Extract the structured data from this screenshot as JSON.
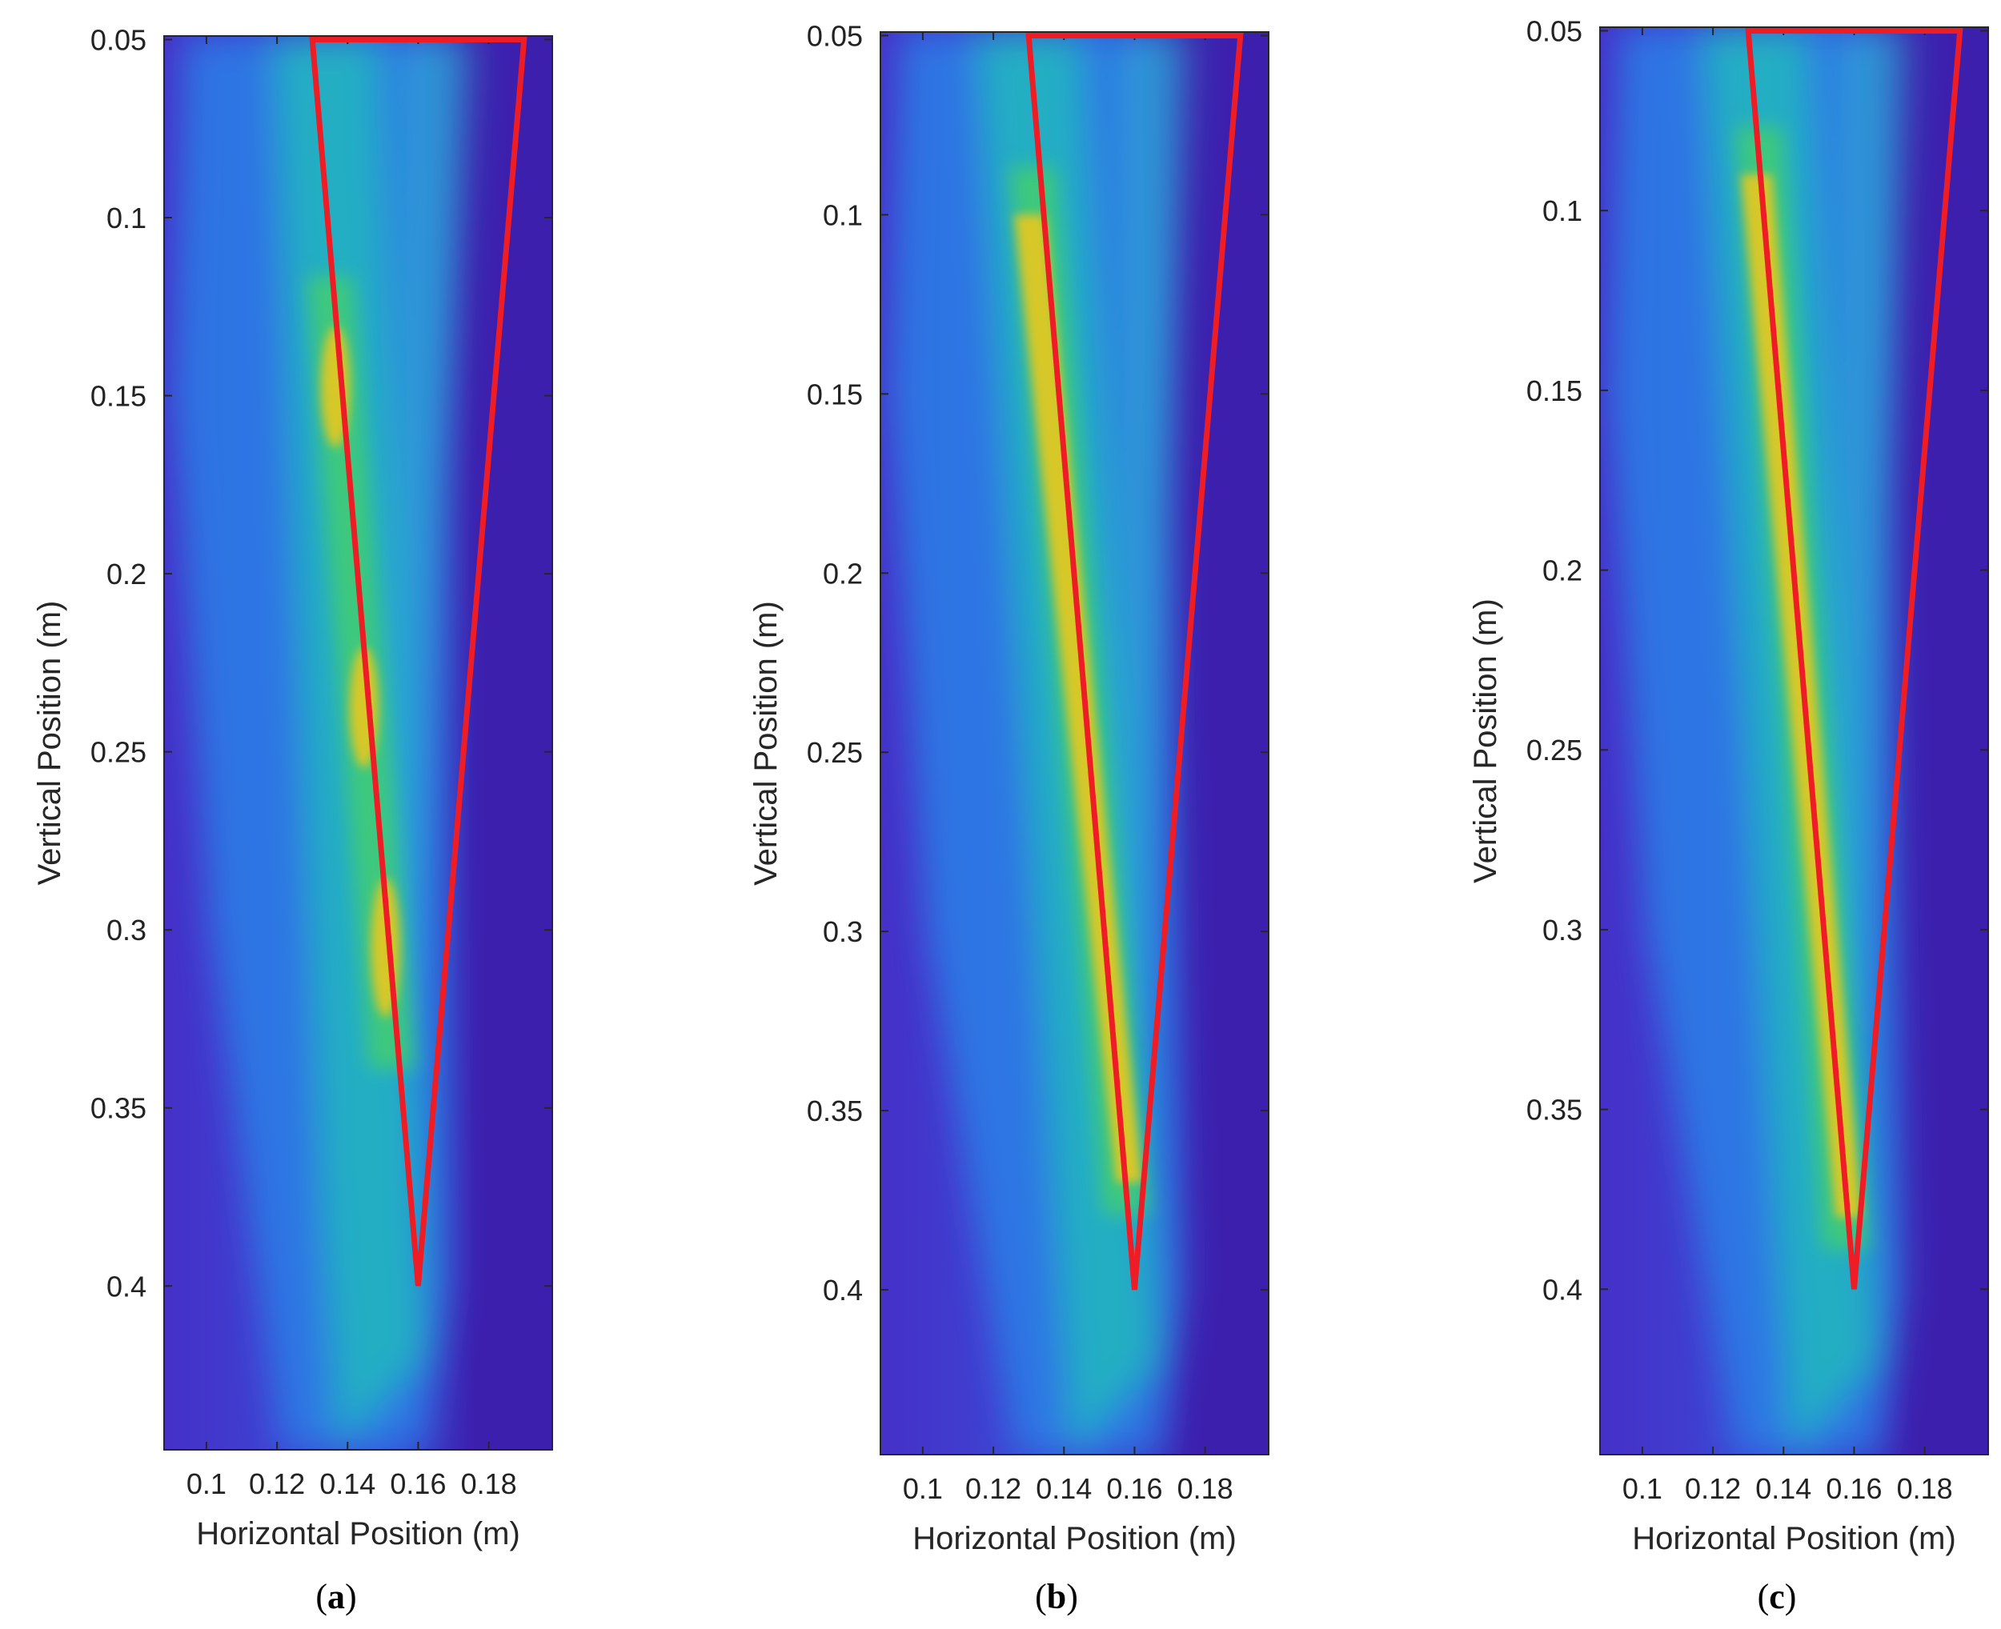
{
  "chart_data": [
    {
      "type": "heatmap",
      "panel_label": "a",
      "xlabel": "Horizontal Position (m)",
      "ylabel": "Vertical Position (m)",
      "xlim": [
        0.088,
        0.198
      ],
      "ylim": [
        0.049,
        0.446
      ],
      "y_reversed": true,
      "xticks": [
        0.1,
        0.12,
        0.14,
        0.16,
        0.18
      ],
      "xtick_labels": [
        "0.1",
        "0.12",
        "0.14",
        "0.16",
        "0.18"
      ],
      "yticks": [
        0.05,
        0.1,
        0.15,
        0.2,
        0.25,
        0.3,
        0.35,
        0.4
      ],
      "ytick_labels": [
        "0.05",
        "0.1",
        "0.15",
        "0.2",
        "0.25",
        "0.3",
        "0.35",
        "0.4"
      ],
      "overlay_polygon": {
        "color": "#ee1c24",
        "points": [
          [
            0.13,
            0.05
          ],
          [
            0.19,
            0.05
          ],
          [
            0.16,
            0.4
          ]
        ]
      },
      "band": {
        "x_top": 0.135,
        "x_bottom": 0.153,
        "y_top": 0.13,
        "y_bottom": 0.33,
        "intensity": "patchy"
      }
    },
    {
      "type": "heatmap",
      "panel_label": "b",
      "xlabel": "Horizontal Position (m)",
      "ylabel": "Vertical Position (m)",
      "xlim": [
        0.088,
        0.198
      ],
      "ylim": [
        0.049,
        0.446
      ],
      "y_reversed": true,
      "xticks": [
        0.1,
        0.12,
        0.14,
        0.16,
        0.18
      ],
      "xtick_labels": [
        "0.1",
        "0.12",
        "0.14",
        "0.16",
        "0.18"
      ],
      "yticks": [
        0.05,
        0.1,
        0.15,
        0.2,
        0.25,
        0.3,
        0.35,
        0.4
      ],
      "ytick_labels": [
        "0.05",
        "0.1",
        "0.15",
        "0.2",
        "0.25",
        "0.3",
        "0.35",
        "0.4"
      ],
      "overlay_polygon": {
        "color": "#ee1c24",
        "points": [
          [
            0.13,
            0.05
          ],
          [
            0.19,
            0.05
          ],
          [
            0.16,
            0.4
          ]
        ]
      },
      "band": {
        "x_top": 0.131,
        "x_bottom": 0.158,
        "y_top": 0.1,
        "y_bottom": 0.37,
        "intensity": "strong"
      }
    },
    {
      "type": "heatmap",
      "panel_label": "c",
      "xlabel": "Horizontal Position (m)",
      "ylabel": "Vertical Position (m)",
      "xlim": [
        0.088,
        0.198
      ],
      "ylim": [
        0.049,
        0.446
      ],
      "y_reversed": true,
      "xticks": [
        0.1,
        0.12,
        0.14,
        0.16,
        0.18
      ],
      "xtick_labels": [
        "0.1",
        "0.12",
        "0.14",
        "0.16",
        "0.18"
      ],
      "yticks": [
        0.05,
        0.1,
        0.15,
        0.2,
        0.25,
        0.3,
        0.35,
        0.4
      ],
      "ytick_labels": [
        "0.05",
        "0.1",
        "0.15",
        "0.2",
        "0.25",
        "0.3",
        "0.35",
        "0.4"
      ],
      "overlay_polygon": {
        "color": "#ee1c24",
        "points": [
          [
            0.13,
            0.05
          ],
          [
            0.19,
            0.05
          ],
          [
            0.16,
            0.4
          ]
        ]
      },
      "band": {
        "x_top": 0.133,
        "x_bottom": 0.158,
        "y_top": 0.09,
        "y_bottom": 0.38,
        "intensity": "strong"
      }
    }
  ],
  "colors": {
    "background": "#3d1fae",
    "low": "#4530c8",
    "mid": "#2a7fe8",
    "teal": "#1fc0b8",
    "high": "#e8c81e",
    "overlay": "#ee1c24"
  }
}
